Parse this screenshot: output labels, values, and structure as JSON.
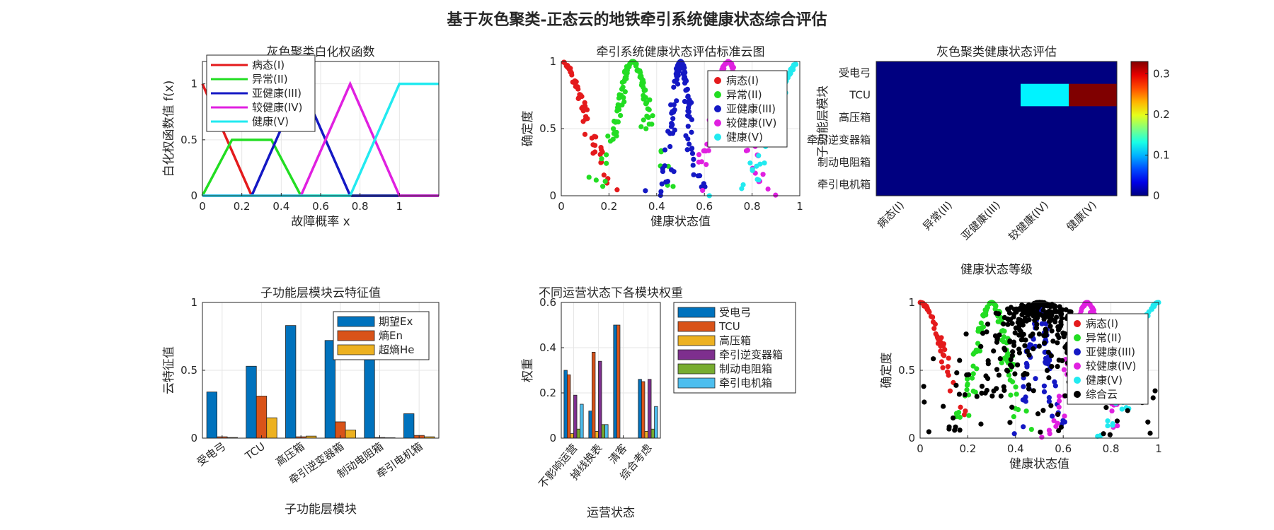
{
  "suptitle": "基于灰色聚类-正态云的地铁牵引系统健康状态综合评估",
  "chart_data": [
    {
      "id": "whitening",
      "type": "line",
      "title": "灰色聚类白化权函数",
      "xlabel": "故障概率 x",
      "ylabel": "白化权函数值 f(x)",
      "xlim": [
        0,
        1.2
      ],
      "ylim": [
        0,
        1.2
      ],
      "xticks": [
        0,
        0.2,
        0.4,
        0.6,
        0.8,
        1
      ],
      "yticks": [
        0,
        0.5,
        1
      ],
      "grid": true,
      "legend": "top-left",
      "series": [
        {
          "name": "病态(I)",
          "color": "#e41a1c",
          "x": [
            0,
            0.25,
            1.2
          ],
          "y": [
            1,
            0,
            0
          ]
        },
        {
          "name": "异常(II)",
          "color": "#22dd22",
          "x": [
            0,
            0.15,
            0.35,
            0.5,
            1.2
          ],
          "y": [
            0,
            0.5,
            0.5,
            0,
            0
          ]
        },
        {
          "name": "亚健康(III)",
          "color": "#1418c4",
          "x": [
            0,
            0.25,
            0.5,
            0.75,
            1.2
          ],
          "y": [
            0,
            0,
            1,
            0,
            0
          ]
        },
        {
          "name": "较健康(IV)",
          "color": "#e020e0",
          "x": [
            0,
            0.5,
            0.75,
            1,
            1.2
          ],
          "y": [
            0,
            0,
            1,
            0,
            0
          ]
        },
        {
          "name": "健康(V)",
          "color": "#22eaf0",
          "x": [
            0,
            0.75,
            1,
            1.2
          ],
          "y": [
            0,
            0,
            1,
            1
          ]
        }
      ]
    },
    {
      "id": "standard_cloud",
      "type": "scatter",
      "title": "牵引系统健康状态评估标准云图",
      "xlabel": "健康状态值",
      "ylabel": "确定度",
      "xlim": [
        0,
        1
      ],
      "ylim": [
        0,
        1
      ],
      "xticks": [
        0,
        0.2,
        0.4,
        0.6,
        0.8,
        1
      ],
      "yticks": [
        0,
        0.5,
        1
      ],
      "grid": true,
      "legend": "top-right",
      "series": [
        {
          "name": "病态(I)",
          "color": "#e41a1c",
          "Ex": 0,
          "En": 0.1,
          "He": 0.01
        },
        {
          "name": "异常(II)",
          "color": "#22dd22",
          "Ex": 0.3,
          "En": 0.065,
          "He": 0.01
        },
        {
          "name": "亚健康(III)",
          "color": "#1418c4",
          "Ex": 0.5,
          "En": 0.035,
          "He": 0.01
        },
        {
          "name": "较健康(IV)",
          "color": "#e020e0",
          "Ex": 0.7,
          "En": 0.065,
          "He": 0.01
        },
        {
          "name": "健康(V)",
          "color": "#22eaf0",
          "Ex": 1,
          "En": 0.1,
          "He": 0.01
        }
      ]
    },
    {
      "id": "heatmap",
      "type": "heatmap",
      "title": "灰色聚类健康状态评估",
      "xlabel": "健康状态等级",
      "ylabel": "子功能层模块",
      "xcategories": [
        "病态(I)",
        "异常(II)",
        "亚健康(III)",
        "较健康(IV)",
        "健康(V)"
      ],
      "ycategories": [
        "受电弓",
        "TCU",
        "高压箱",
        "牵引逆变器箱",
        "制动电阻箱",
        "牵引电机箱"
      ],
      "values": [
        [
          0,
          0,
          0,
          0,
          0
        ],
        [
          0,
          0,
          0,
          0.12,
          0.33
        ],
        [
          0,
          0,
          0,
          0,
          0
        ],
        [
          0,
          0,
          0,
          0,
          0
        ],
        [
          0,
          0,
          0,
          0,
          0
        ],
        [
          0,
          0,
          0,
          0,
          0
        ]
      ],
      "colorbar_ticks": [
        0,
        0.1,
        0.2,
        0.3
      ],
      "clim": [
        0,
        0.33
      ]
    },
    {
      "id": "cloud_features",
      "type": "bar",
      "title": "子功能层模块云特征值",
      "xlabel": "子功能层模块",
      "ylabel": "云特征值",
      "ylim": [
        0,
        1
      ],
      "yticks": [
        0,
        0.5,
        1
      ],
      "grid": true,
      "legend": "top-right",
      "categories": [
        "受电弓",
        "TCU",
        "高压箱",
        "牵引逆变器箱",
        "制动电阻箱",
        "牵引电机箱"
      ],
      "series": [
        {
          "name": "期望Ex",
          "color": "#0072bd",
          "values": [
            0.34,
            0.53,
            0.83,
            0.72,
            0.6,
            0.18
          ]
        },
        {
          "name": "熵En",
          "color": "#d95319",
          "values": [
            0.01,
            0.31,
            0.01,
            0.12,
            0.005,
            0.02
          ]
        },
        {
          "name": "超熵He",
          "color": "#edb120",
          "values": [
            0.005,
            0.15,
            0.015,
            0.06,
            0.003,
            0.01
          ]
        }
      ]
    },
    {
      "id": "weights",
      "type": "bar",
      "title": "不同运营状态下各模块权重",
      "xlabel": "运营状态",
      "ylabel": "权重",
      "ylim": [
        0,
        0.6
      ],
      "yticks": [
        0,
        0.2,
        0.4,
        0.6
      ],
      "grid": true,
      "legend": "outside-right",
      "categories": [
        "不影响运营",
        "掉线换表",
        "清客",
        "综合考虑"
      ],
      "series": [
        {
          "name": "受电弓",
          "color": "#0072bd",
          "values": [
            0.3,
            0.12,
            0.5,
            0.26
          ]
        },
        {
          "name": "TCU",
          "color": "#d95319",
          "values": [
            0.28,
            0.38,
            0.5,
            0.25
          ]
        },
        {
          "name": "高压箱",
          "color": "#edb120",
          "values": [
            0.02,
            0.03,
            0,
            0.03
          ]
        },
        {
          "name": "牵引逆变器箱",
          "color": "#7e2f8e",
          "values": [
            0.19,
            0.34,
            0,
            0.26
          ]
        },
        {
          "name": "制动电阻箱",
          "color": "#77ac30",
          "values": [
            0.04,
            0.06,
            0,
            0.04
          ]
        },
        {
          "name": "牵引电机箱",
          "color": "#4dbeee",
          "values": [
            0.15,
            0.06,
            0,
            0.14
          ]
        }
      ]
    },
    {
      "id": "combined_cloud",
      "type": "scatter",
      "xlabel": "健康状态值",
      "ylabel": "确定度",
      "xlim": [
        0,
        1
      ],
      "ylim": [
        0,
        1
      ],
      "xticks": [
        0,
        0.2,
        0.4,
        0.6,
        0.8,
        1
      ],
      "yticks": [
        0,
        0.5,
        1
      ],
      "grid": true,
      "legend": "top-right",
      "series": [
        {
          "name": "病态(I)",
          "color": "#e41a1c",
          "Ex": 0,
          "En": 0.1,
          "He": 0.01
        },
        {
          "name": "异常(II)",
          "color": "#22dd22",
          "Ex": 0.3,
          "En": 0.065,
          "He": 0.01
        },
        {
          "name": "亚健康(III)",
          "color": "#1418c4",
          "Ex": 0.5,
          "En": 0.035,
          "He": 0.01
        },
        {
          "name": "较健康(IV)",
          "color": "#e020e0",
          "Ex": 0.7,
          "En": 0.065,
          "He": 0.01
        },
        {
          "name": "健康(V)",
          "color": "#22eaf0",
          "Ex": 1,
          "En": 0.1,
          "He": 0.01
        },
        {
          "name": "综合云",
          "color": "#000000",
          "Ex": 0.5,
          "En": 0.15,
          "He": 0.1
        }
      ]
    }
  ]
}
